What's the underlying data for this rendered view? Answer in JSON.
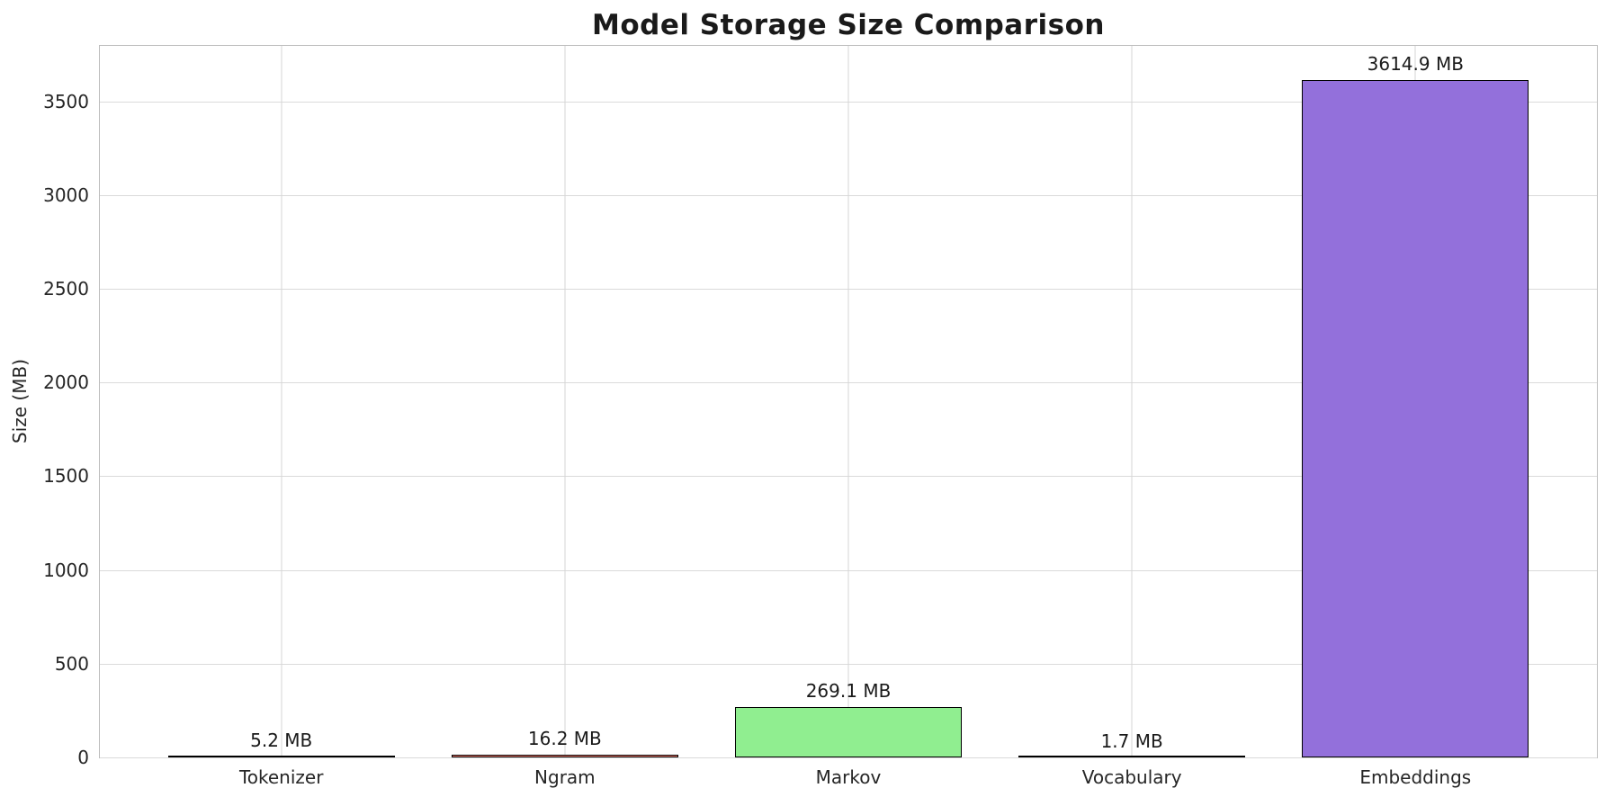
{
  "chart_data": {
    "type": "bar",
    "title": "Model Storage Size Comparison",
    "xlabel": "",
    "ylabel": "Size (MB)",
    "categories": [
      "Tokenizer",
      "Ngram",
      "Markov",
      "Vocabulary",
      "Embeddings"
    ],
    "values": [
      5.2,
      16.2,
      269.1,
      1.7,
      3614.9
    ],
    "value_labels": [
      "5.2 MB",
      "16.2 MB",
      "269.1 MB",
      "1.7 MB",
      "3614.9 MB"
    ],
    "bar_colors": [
      "#87ceeb",
      "#fa8072",
      "#90ee90",
      "#ffd700",
      "#9370db"
    ],
    "bar_edge_color": "#000000",
    "bar_width": 0.8,
    "ylim": [
      0,
      3795.6
    ],
    "xlim": [
      -0.64,
      4.64
    ],
    "yticks": [
      0,
      500,
      1000,
      1500,
      2000,
      2500,
      3000,
      3500
    ],
    "grid": true,
    "legend": "none"
  }
}
